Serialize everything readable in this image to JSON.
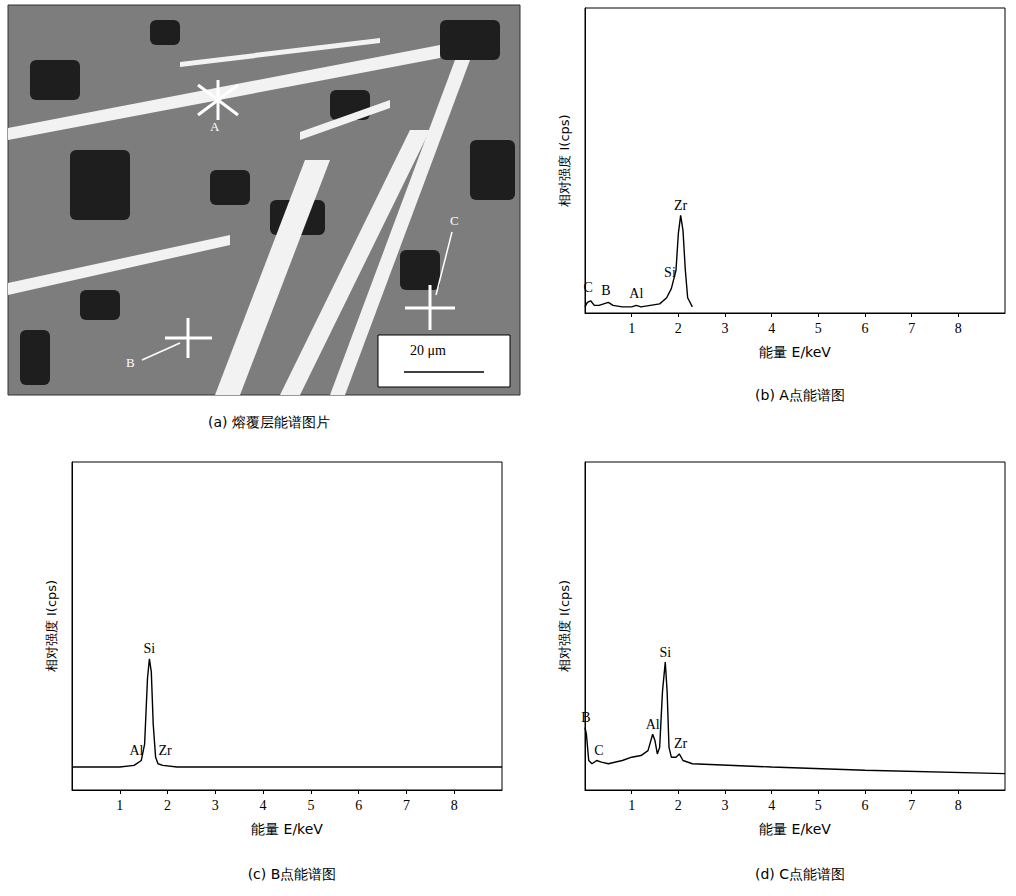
{
  "image_panel": {
    "caption": "(a) 熔覆层能谱图片",
    "markers": [
      "A",
      "B",
      "C"
    ],
    "scale_bar": "20 μm"
  },
  "chart_data": [
    {
      "type": "line",
      "title": "(b) A点能谱图",
      "xlabel": "能量 E/keV",
      "ylabel": "相对强度 I(cps)",
      "x": [
        0,
        0.05,
        0.12,
        0.2,
        0.3,
        0.4,
        0.5,
        0.6,
        0.8,
        1.0,
        1.1,
        1.2,
        1.4,
        1.6,
        1.75,
        1.85,
        1.95,
        2.0,
        2.05,
        2.1,
        2.15,
        2.2,
        2.3
      ],
      "values": [
        2,
        3.5,
        4,
        2.5,
        2.5,
        3,
        3.5,
        2.5,
        2,
        2,
        2.5,
        2,
        2.5,
        3,
        5,
        8,
        14,
        26,
        32,
        27,
        14,
        5,
        2
      ],
      "color": "#000000",
      "xlim": [
        0,
        9
      ],
      "xticks": [
        1,
        2,
        3,
        4,
        5,
        6,
        7,
        8
      ],
      "ylim": [
        0,
        100
      ],
      "tick_labels": "x",
      "grid": false,
      "annotations": [
        {
          "text": "C",
          "x": 0.07,
          "y": 5
        },
        {
          "text": "B",
          "x": 0.45,
          "y": 4
        },
        {
          "text": "Al",
          "x": 1.1,
          "y": 3
        },
        {
          "text": "Si",
          "x": 1.82,
          "y": 10
        },
        {
          "text": "Zr",
          "x": 2.05,
          "y": 32
        }
      ]
    },
    {
      "type": "line",
      "title": "(c) B点能谱图",
      "xlabel": "能量 E/keV",
      "ylabel": "相对强度 I(cps)",
      "x": [
        0,
        0.5,
        1,
        1.3,
        1.45,
        1.52,
        1.58,
        1.62,
        1.66,
        1.7,
        1.75,
        1.8,
        1.9,
        2.2,
        3,
        9
      ],
      "values": [
        7,
        7,
        7,
        7.5,
        9,
        14,
        34,
        40,
        36,
        20,
        10,
        8,
        7.5,
        7,
        7,
        7
      ],
      "color": "#000000",
      "xlim": [
        0,
        9
      ],
      "xticks": [
        1,
        2,
        3,
        4,
        5,
        6,
        7,
        8
      ],
      "ylim": [
        0,
        100
      ],
      "tick_labels": "x",
      "grid": false,
      "annotations": [
        {
          "text": "Al",
          "x": 1.35,
          "y": 9
        },
        {
          "text": "Si",
          "x": 1.62,
          "y": 40
        },
        {
          "text": "Zr",
          "x": 1.95,
          "y": 9
        }
      ]
    },
    {
      "type": "line",
      "title": "(d) C点能谱图",
      "xlabel": "能量 E/keV",
      "ylabel": "相对强度 I(cps)",
      "x": [
        0,
        0.03,
        0.08,
        0.15,
        0.25,
        0.35,
        0.5,
        0.8,
        1.0,
        1.2,
        1.35,
        1.45,
        1.5,
        1.55,
        1.6,
        1.66,
        1.72,
        1.76,
        1.8,
        1.85,
        1.95,
        2.02,
        2.1,
        2.3,
        4,
        6,
        9
      ],
      "values": [
        19,
        17,
        9,
        8,
        9,
        8.5,
        8,
        9,
        10,
        10.5,
        12,
        17,
        15,
        11,
        13,
        30,
        39,
        30,
        13,
        10,
        10,
        11,
        9,
        8,
        7,
        6,
        5
      ],
      "color": "#000000",
      "xlim": [
        0,
        9
      ],
      "xticks": [
        1,
        2,
        3,
        4,
        5,
        6,
        7,
        8
      ],
      "ylim": [
        0,
        100
      ],
      "tick_labels": "x",
      "grid": false,
      "annotations": [
        {
          "text": "B",
          "x": 0.02,
          "y": 19
        },
        {
          "text": "C",
          "x": 0.3,
          "y": 9
        },
        {
          "text": "Al",
          "x": 1.45,
          "y": 17
        },
        {
          "text": "Si",
          "x": 1.72,
          "y": 39
        },
        {
          "text": "Zr",
          "x": 2.05,
          "y": 11
        }
      ]
    }
  ]
}
